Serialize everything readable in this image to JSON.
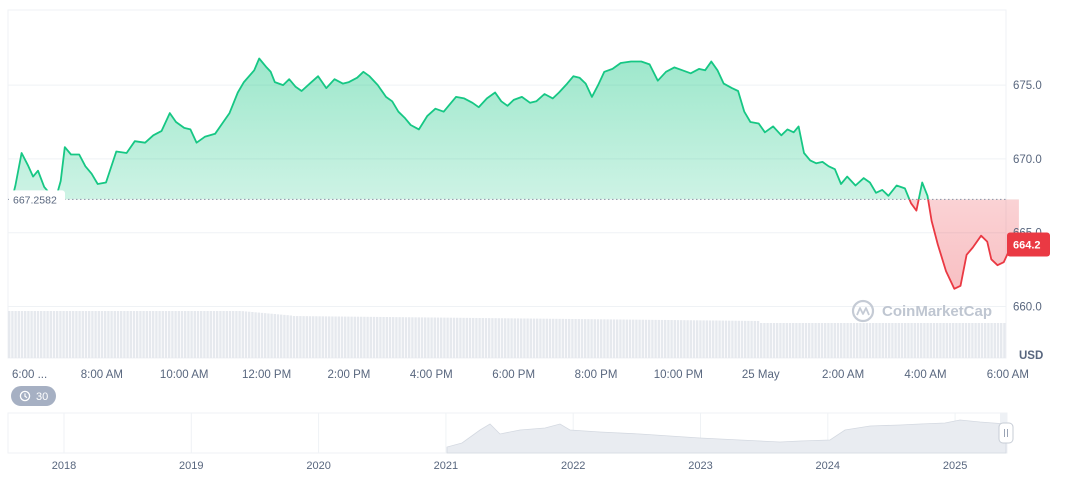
{
  "chart_data": {
    "type": "area",
    "currency_label": "USD",
    "reference": {
      "value": 667.2582,
      "label": "667.2582"
    },
    "current": {
      "value": 664.2,
      "label": "664.2"
    },
    "watermark": "CoinMarketCap",
    "interval_badge": "30",
    "ylim": [
      658.8,
      680.5
    ],
    "y_ticks": [
      {
        "value": 675.0,
        "label": "675.0"
      },
      {
        "value": 670.0,
        "label": "670.0"
      },
      {
        "value": 665.0,
        "label": "665.0"
      },
      {
        "value": 660.0,
        "label": "660.0"
      }
    ],
    "xlim": [
      5.82,
      30.27
    ],
    "x_ticks": [
      {
        "value": 6.0,
        "label": "6:00 ..."
      },
      {
        "value": 8.0,
        "label": "8:00 AM"
      },
      {
        "value": 10.0,
        "label": "10:00 AM"
      },
      {
        "value": 12.0,
        "label": "12:00 PM"
      },
      {
        "value": 14.0,
        "label": "2:00 PM"
      },
      {
        "value": 16.0,
        "label": "4:00 PM"
      },
      {
        "value": 18.0,
        "label": "6:00 PM"
      },
      {
        "value": 20.0,
        "label": "8:00 PM"
      },
      {
        "value": 22.0,
        "label": "10:00 PM"
      },
      {
        "value": 24.0,
        "label": "25 May"
      },
      {
        "value": 26.0,
        "label": "2:00 AM"
      },
      {
        "value": 28.0,
        "label": "4:00 AM"
      },
      {
        "value": 30.0,
        "label": "6:00 AM"
      }
    ],
    "colors": {
      "up": "#16c784",
      "down": "#ea3943",
      "badge": "#ea3943",
      "grid": "#eff2f5"
    },
    "price_points": [
      [
        5.82,
        667.3
      ],
      [
        5.9,
        668.2
      ],
      [
        6.05,
        670.4
      ],
      [
        6.2,
        669.6
      ],
      [
        6.33,
        668.8
      ],
      [
        6.45,
        669.2
      ],
      [
        6.6,
        668.1
      ],
      [
        6.75,
        667.6
      ],
      [
        6.9,
        667.5
      ],
      [
        7.0,
        668.5
      ],
      [
        7.1,
        670.8
      ],
      [
        7.25,
        670.3
      ],
      [
        7.45,
        670.3
      ],
      [
        7.6,
        669.5
      ],
      [
        7.75,
        669.0
      ],
      [
        7.9,
        668.3
      ],
      [
        8.1,
        668.4
      ],
      [
        8.35,
        670.5
      ],
      [
        8.6,
        670.4
      ],
      [
        8.8,
        671.2
      ],
      [
        9.05,
        671.1
      ],
      [
        9.25,
        671.6
      ],
      [
        9.45,
        671.9
      ],
      [
        9.65,
        673.1
      ],
      [
        9.8,
        672.5
      ],
      [
        10.0,
        672.1
      ],
      [
        10.15,
        672.0
      ],
      [
        10.3,
        671.1
      ],
      [
        10.5,
        671.5
      ],
      [
        10.75,
        671.7
      ],
      [
        10.95,
        672.5
      ],
      [
        11.1,
        673.1
      ],
      [
        11.3,
        674.5
      ],
      [
        11.45,
        675.2
      ],
      [
        11.7,
        676.0
      ],
      [
        11.82,
        676.8
      ],
      [
        12.0,
        676.2
      ],
      [
        12.1,
        675.9
      ],
      [
        12.2,
        675.2
      ],
      [
        12.4,
        675.0
      ],
      [
        12.55,
        675.4
      ],
      [
        12.7,
        674.9
      ],
      [
        12.85,
        674.6
      ],
      [
        13.05,
        675.1
      ],
      [
        13.25,
        675.6
      ],
      [
        13.45,
        674.8
      ],
      [
        13.65,
        675.4
      ],
      [
        13.85,
        675.1
      ],
      [
        14.0,
        675.2
      ],
      [
        14.2,
        675.5
      ],
      [
        14.35,
        675.9
      ],
      [
        14.5,
        675.6
      ],
      [
        14.7,
        675.0
      ],
      [
        14.9,
        674.2
      ],
      [
        15.05,
        673.9
      ],
      [
        15.2,
        673.2
      ],
      [
        15.35,
        672.8
      ],
      [
        15.5,
        672.3
      ],
      [
        15.7,
        672.0
      ],
      [
        15.9,
        672.9
      ],
      [
        16.1,
        673.4
      ],
      [
        16.3,
        673.2
      ],
      [
        16.45,
        673.7
      ],
      [
        16.6,
        674.2
      ],
      [
        16.8,
        674.1
      ],
      [
        17.0,
        673.8
      ],
      [
        17.15,
        673.5
      ],
      [
        17.35,
        674.1
      ],
      [
        17.55,
        674.5
      ],
      [
        17.7,
        673.9
      ],
      [
        17.85,
        673.6
      ],
      [
        18.0,
        674.0
      ],
      [
        18.2,
        674.2
      ],
      [
        18.4,
        673.8
      ],
      [
        18.55,
        673.9
      ],
      [
        18.75,
        674.4
      ],
      [
        18.95,
        674.1
      ],
      [
        19.1,
        674.5
      ],
      [
        19.3,
        675.1
      ],
      [
        19.45,
        675.6
      ],
      [
        19.6,
        675.5
      ],
      [
        19.75,
        675.1
      ],
      [
        19.9,
        674.2
      ],
      [
        20.05,
        675.0
      ],
      [
        20.2,
        675.9
      ],
      [
        20.4,
        676.1
      ],
      [
        20.6,
        676.5
      ],
      [
        20.85,
        676.6
      ],
      [
        21.1,
        676.6
      ],
      [
        21.3,
        676.4
      ],
      [
        21.5,
        675.3
      ],
      [
        21.7,
        675.9
      ],
      [
        21.9,
        676.2
      ],
      [
        22.1,
        676.0
      ],
      [
        22.3,
        675.8
      ],
      [
        22.5,
        676.1
      ],
      [
        22.65,
        676.0
      ],
      [
        22.8,
        676.6
      ],
      [
        22.95,
        676.0
      ],
      [
        23.1,
        675.1
      ],
      [
        23.3,
        674.8
      ],
      [
        23.45,
        674.6
      ],
      [
        23.6,
        673.2
      ],
      [
        23.75,
        672.5
      ],
      [
        23.95,
        672.4
      ],
      [
        24.1,
        671.8
      ],
      [
        24.3,
        672.2
      ],
      [
        24.5,
        671.6
      ],
      [
        24.65,
        672.0
      ],
      [
        24.8,
        671.8
      ],
      [
        24.92,
        672.2
      ],
      [
        25.05,
        670.4
      ],
      [
        25.2,
        669.9
      ],
      [
        25.35,
        669.7
      ],
      [
        25.5,
        669.8
      ],
      [
        25.65,
        669.5
      ],
      [
        25.8,
        669.3
      ],
      [
        25.95,
        668.3
      ],
      [
        26.1,
        668.8
      ],
      [
        26.3,
        668.2
      ],
      [
        26.5,
        668.7
      ],
      [
        26.65,
        668.4
      ],
      [
        26.8,
        667.7
      ],
      [
        26.95,
        667.9
      ],
      [
        27.1,
        667.5
      ],
      [
        27.3,
        668.2
      ],
      [
        27.5,
        668.0
      ],
      [
        27.65,
        667.0
      ],
      [
        27.78,
        666.5
      ],
      [
        27.92,
        668.4
      ],
      [
        28.05,
        667.5
      ],
      [
        28.15,
        665.8
      ],
      [
        28.3,
        664.2
      ],
      [
        28.5,
        662.4
      ],
      [
        28.7,
        661.2
      ],
      [
        28.85,
        661.4
      ],
      [
        29.0,
        663.5
      ],
      [
        29.15,
        664.0
      ],
      [
        29.35,
        664.8
      ],
      [
        29.5,
        664.4
      ],
      [
        29.6,
        663.2
      ],
      [
        29.75,
        662.8
      ],
      [
        29.9,
        663.0
      ],
      [
        30.05,
        663.9
      ],
      [
        30.27,
        664.2
      ]
    ],
    "navigator": {
      "x_ticks": [
        {
          "value": 2018,
          "label": "2018"
        },
        {
          "value": 2019,
          "label": "2019"
        },
        {
          "value": 2020,
          "label": "2020"
        },
        {
          "value": 2021,
          "label": "2021"
        },
        {
          "value": 2022,
          "label": "2022"
        },
        {
          "value": 2023,
          "label": "2023"
        },
        {
          "value": 2024,
          "label": "2024"
        },
        {
          "value": 2025,
          "label": "2025"
        }
      ]
    }
  }
}
